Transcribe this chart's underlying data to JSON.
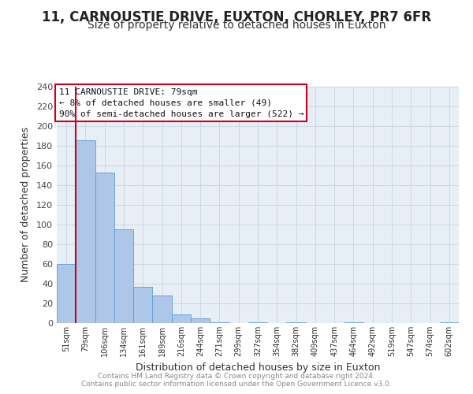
{
  "title": "11, CARNOUSTIE DRIVE, EUXTON, CHORLEY, PR7 6FR",
  "subtitle": "Size of property relative to detached houses in Euxton",
  "xlabel": "Distribution of detached houses by size in Euxton",
  "ylabel": "Number of detached properties",
  "bar_labels": [
    "51sqm",
    "79sqm",
    "106sqm",
    "134sqm",
    "161sqm",
    "189sqm",
    "216sqm",
    "244sqm",
    "271sqm",
    "299sqm",
    "327sqm",
    "354sqm",
    "382sqm",
    "409sqm",
    "437sqm",
    "464sqm",
    "492sqm",
    "519sqm",
    "547sqm",
    "574sqm",
    "602sqm"
  ],
  "bar_values": [
    60,
    186,
    153,
    95,
    37,
    28,
    9,
    5,
    1,
    0,
    1,
    0,
    1,
    0,
    0,
    1,
    0,
    0,
    0,
    0,
    1
  ],
  "highlight_index": 1,
  "bar_color": "#aec6e8",
  "highlight_color": "#c8001e",
  "bar_edge_color": "#5a9fd4",
  "highlight_edge_color": "#c8001e",
  "ylim": [
    0,
    240
  ],
  "yticks": [
    0,
    20,
    40,
    60,
    80,
    100,
    120,
    140,
    160,
    180,
    200,
    220,
    240
  ],
  "annotation_title": "11 CARNOUSTIE DRIVE: 79sqm",
  "annotation_line1": "← 8% of detached houses are smaller (49)",
  "annotation_line2": "90% of semi-detached houses are larger (522) →",
  "annotation_box_color": "#ffffff",
  "annotation_box_edgecolor": "#c8001e",
  "footer_line1": "Contains HM Land Registry data © Crown copyright and database right 2024.",
  "footer_line2": "Contains public sector information licensed under the Open Government Licence v3.0.",
  "background_color": "#ffffff",
  "axes_bg_color": "#e8eef5",
  "grid_color": "#c8d4e0",
  "title_fontsize": 12,
  "subtitle_fontsize": 10
}
